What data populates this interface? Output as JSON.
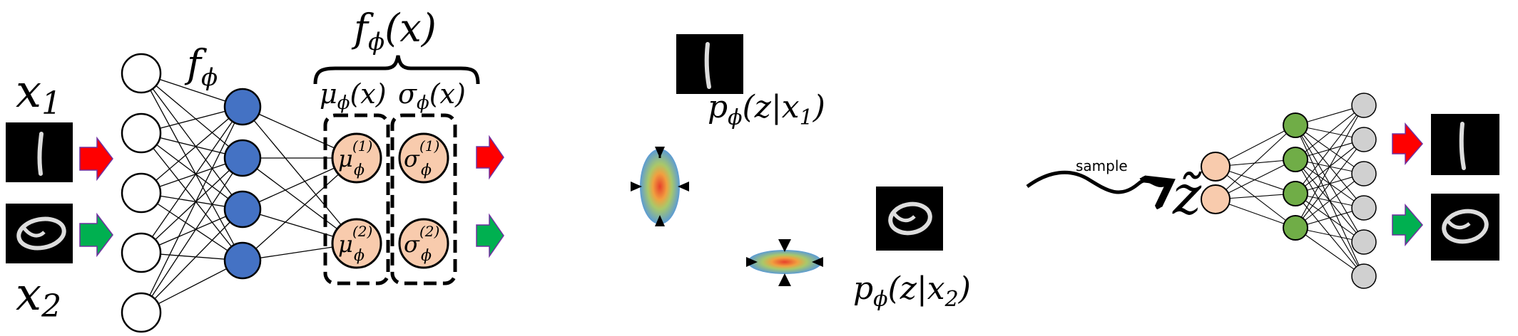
{
  "colors": {
    "input_node": "#ffffff",
    "hidden_node": "#4472c4",
    "latent_node": "#f8cbad",
    "decoder_hidden_node": "#70ad47",
    "output_node": "#d0d0d0",
    "arrow_red": "#ff0000",
    "arrow_green": "#00b050",
    "arrow_outline": "#7030a0",
    "image_bg": "#000000"
  },
  "encoder": {
    "label_f": "f",
    "label_phi": "ϕ",
    "brace_label": "f",
    "brace_label_phi": "ϕ",
    "brace_label_arg": "(x)",
    "mu_label": "μ",
    "mu_sub": "ϕ",
    "mu_arg": "(x)",
    "sigma_label": "σ",
    "sigma_sub": "ϕ",
    "sigma_arg": "(x)",
    "mu_node_1": {
      "sym": "μ",
      "sup": "(1)",
      "sub": "ϕ"
    },
    "mu_node_2": {
      "sym": "μ",
      "sup": "(2)",
      "sub": "ϕ"
    },
    "sigma_node_1": {
      "sym": "σ",
      "sup": "(1)",
      "sub": "ϕ"
    },
    "sigma_node_2": {
      "sym": "σ",
      "sup": "(2)",
      "sub": "ϕ"
    },
    "input_count": 5,
    "hidden_count": 4
  },
  "inputs": {
    "x1_sym": "x",
    "x1_sub": "1",
    "x2_sym": "x",
    "x2_sub": "2",
    "x1_digit": "1",
    "x2_digit": "0"
  },
  "latent": {
    "p1_text": "p",
    "p1_sub": "ϕ",
    "p1_args": "(z|x",
    "p1_idx": "1",
    "p1_close": ")",
    "p2_text": "p",
    "p2_sub": "ϕ",
    "p2_args": "(z|x",
    "p2_idx": "2",
    "p2_close": ")"
  },
  "decoder": {
    "sample_label": "sample",
    "z_tilde": "z̃",
    "latent_count": 2,
    "hidden_count": 4,
    "output_count": 6
  }
}
